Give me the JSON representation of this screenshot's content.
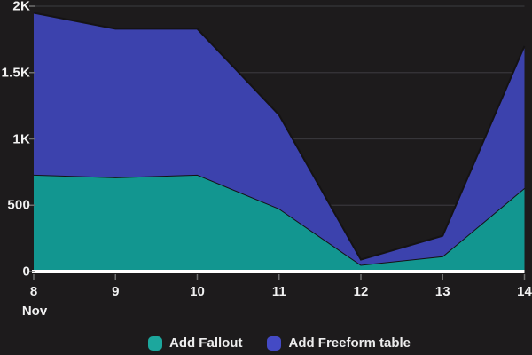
{
  "chart_data": {
    "type": "area",
    "stacked": true,
    "title": "",
    "xlabel": "",
    "ylabel": "",
    "x": [
      8,
      9,
      10,
      11,
      12,
      13,
      14
    ],
    "x_labels": [
      "8",
      "9",
      "10",
      "11",
      "12",
      "13",
      "14"
    ],
    "x_month_label": "Nov",
    "series": [
      {
        "name": "Add Fallout",
        "color": "#129690",
        "legend_color": "#1CA79D",
        "values": [
          730,
          710,
          730,
          475,
          50,
          115,
          630
        ]
      },
      {
        "name": "Add Freeform table",
        "color": "#3C42AD",
        "legend_color": "#444AC5",
        "values": [
          1220,
          1120,
          1100,
          705,
          40,
          155,
          1070
        ]
      }
    ],
    "stacked_totals": [
      1950,
      1830,
      1830,
      1180,
      90,
      270,
      1700
    ],
    "ylim": [
      0,
      2000
    ],
    "yticks": [
      {
        "value": 0,
        "label": "0"
      },
      {
        "value": 500,
        "label": "500"
      },
      {
        "value": 1000,
        "label": "1K"
      },
      {
        "value": 1500,
        "label": "1.5K"
      },
      {
        "value": 2000,
        "label": "2K"
      }
    ],
    "grid": true,
    "legend_position": "bottom"
  },
  "legend": {
    "items": [
      {
        "label": "Add Fallout",
        "color": "#1CA79D"
      },
      {
        "label": "Add Freeform table",
        "color": "#444AC5"
      }
    ]
  },
  "colors": {
    "background": "#1D1B1C",
    "gridline": "#37363A",
    "baseline": "#FFFFFF",
    "tick": "#6F6F6F",
    "label": "#F1F1F1",
    "series_outline": "#151314"
  }
}
